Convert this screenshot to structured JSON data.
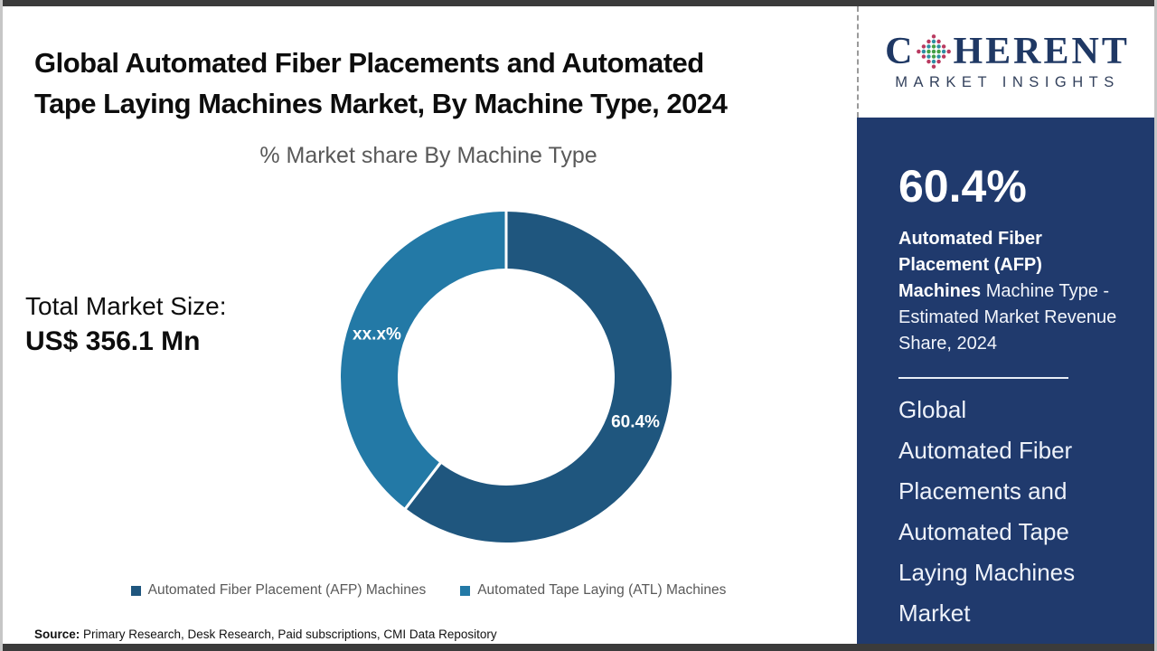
{
  "page": {
    "title": "Global Automated Fiber Placements and Automated\nTape Laying Machines Market, By Machine Type, 2024",
    "source_label": "Source:",
    "source_text": " Primary Research, Desk Research, Paid subscriptions, CMI Data Repository"
  },
  "logo": {
    "brand_prefix": "C",
    "brand_suffix": "HERENT",
    "subtitle": "MARKET INSIGHTS",
    "brand_color": "#1f3864"
  },
  "main": {
    "total_market_label": "Total Market Size:",
    "total_market_value": "US$ 356.1 Mn"
  },
  "chart_data": {
    "type": "pie",
    "donut": true,
    "title": "% Market share By Machine Type",
    "categories": [
      "Automated Fiber Placement (AFP) Machines",
      "Automated Tape Laying (ATL) Machines"
    ],
    "values": [
      60.4,
      39.6
    ],
    "display_labels": [
      "60.4%",
      "xx.x%"
    ],
    "colors": [
      "#1f567e",
      "#2379a6"
    ],
    "start_angle_deg": 0,
    "legend_position": "bottom"
  },
  "sidebar": {
    "background": "#203a6d",
    "stat_value": "60.4%",
    "stat_desc_bold": "Automated Fiber Placement (AFP) Machines",
    "stat_desc_rest": " Machine Type - Estimated Market Revenue Share, 2024",
    "footer_title": "Global\nAutomated Fiber\nPlacements and\nAutomated Tape\nLaying Machines\nMarket"
  }
}
